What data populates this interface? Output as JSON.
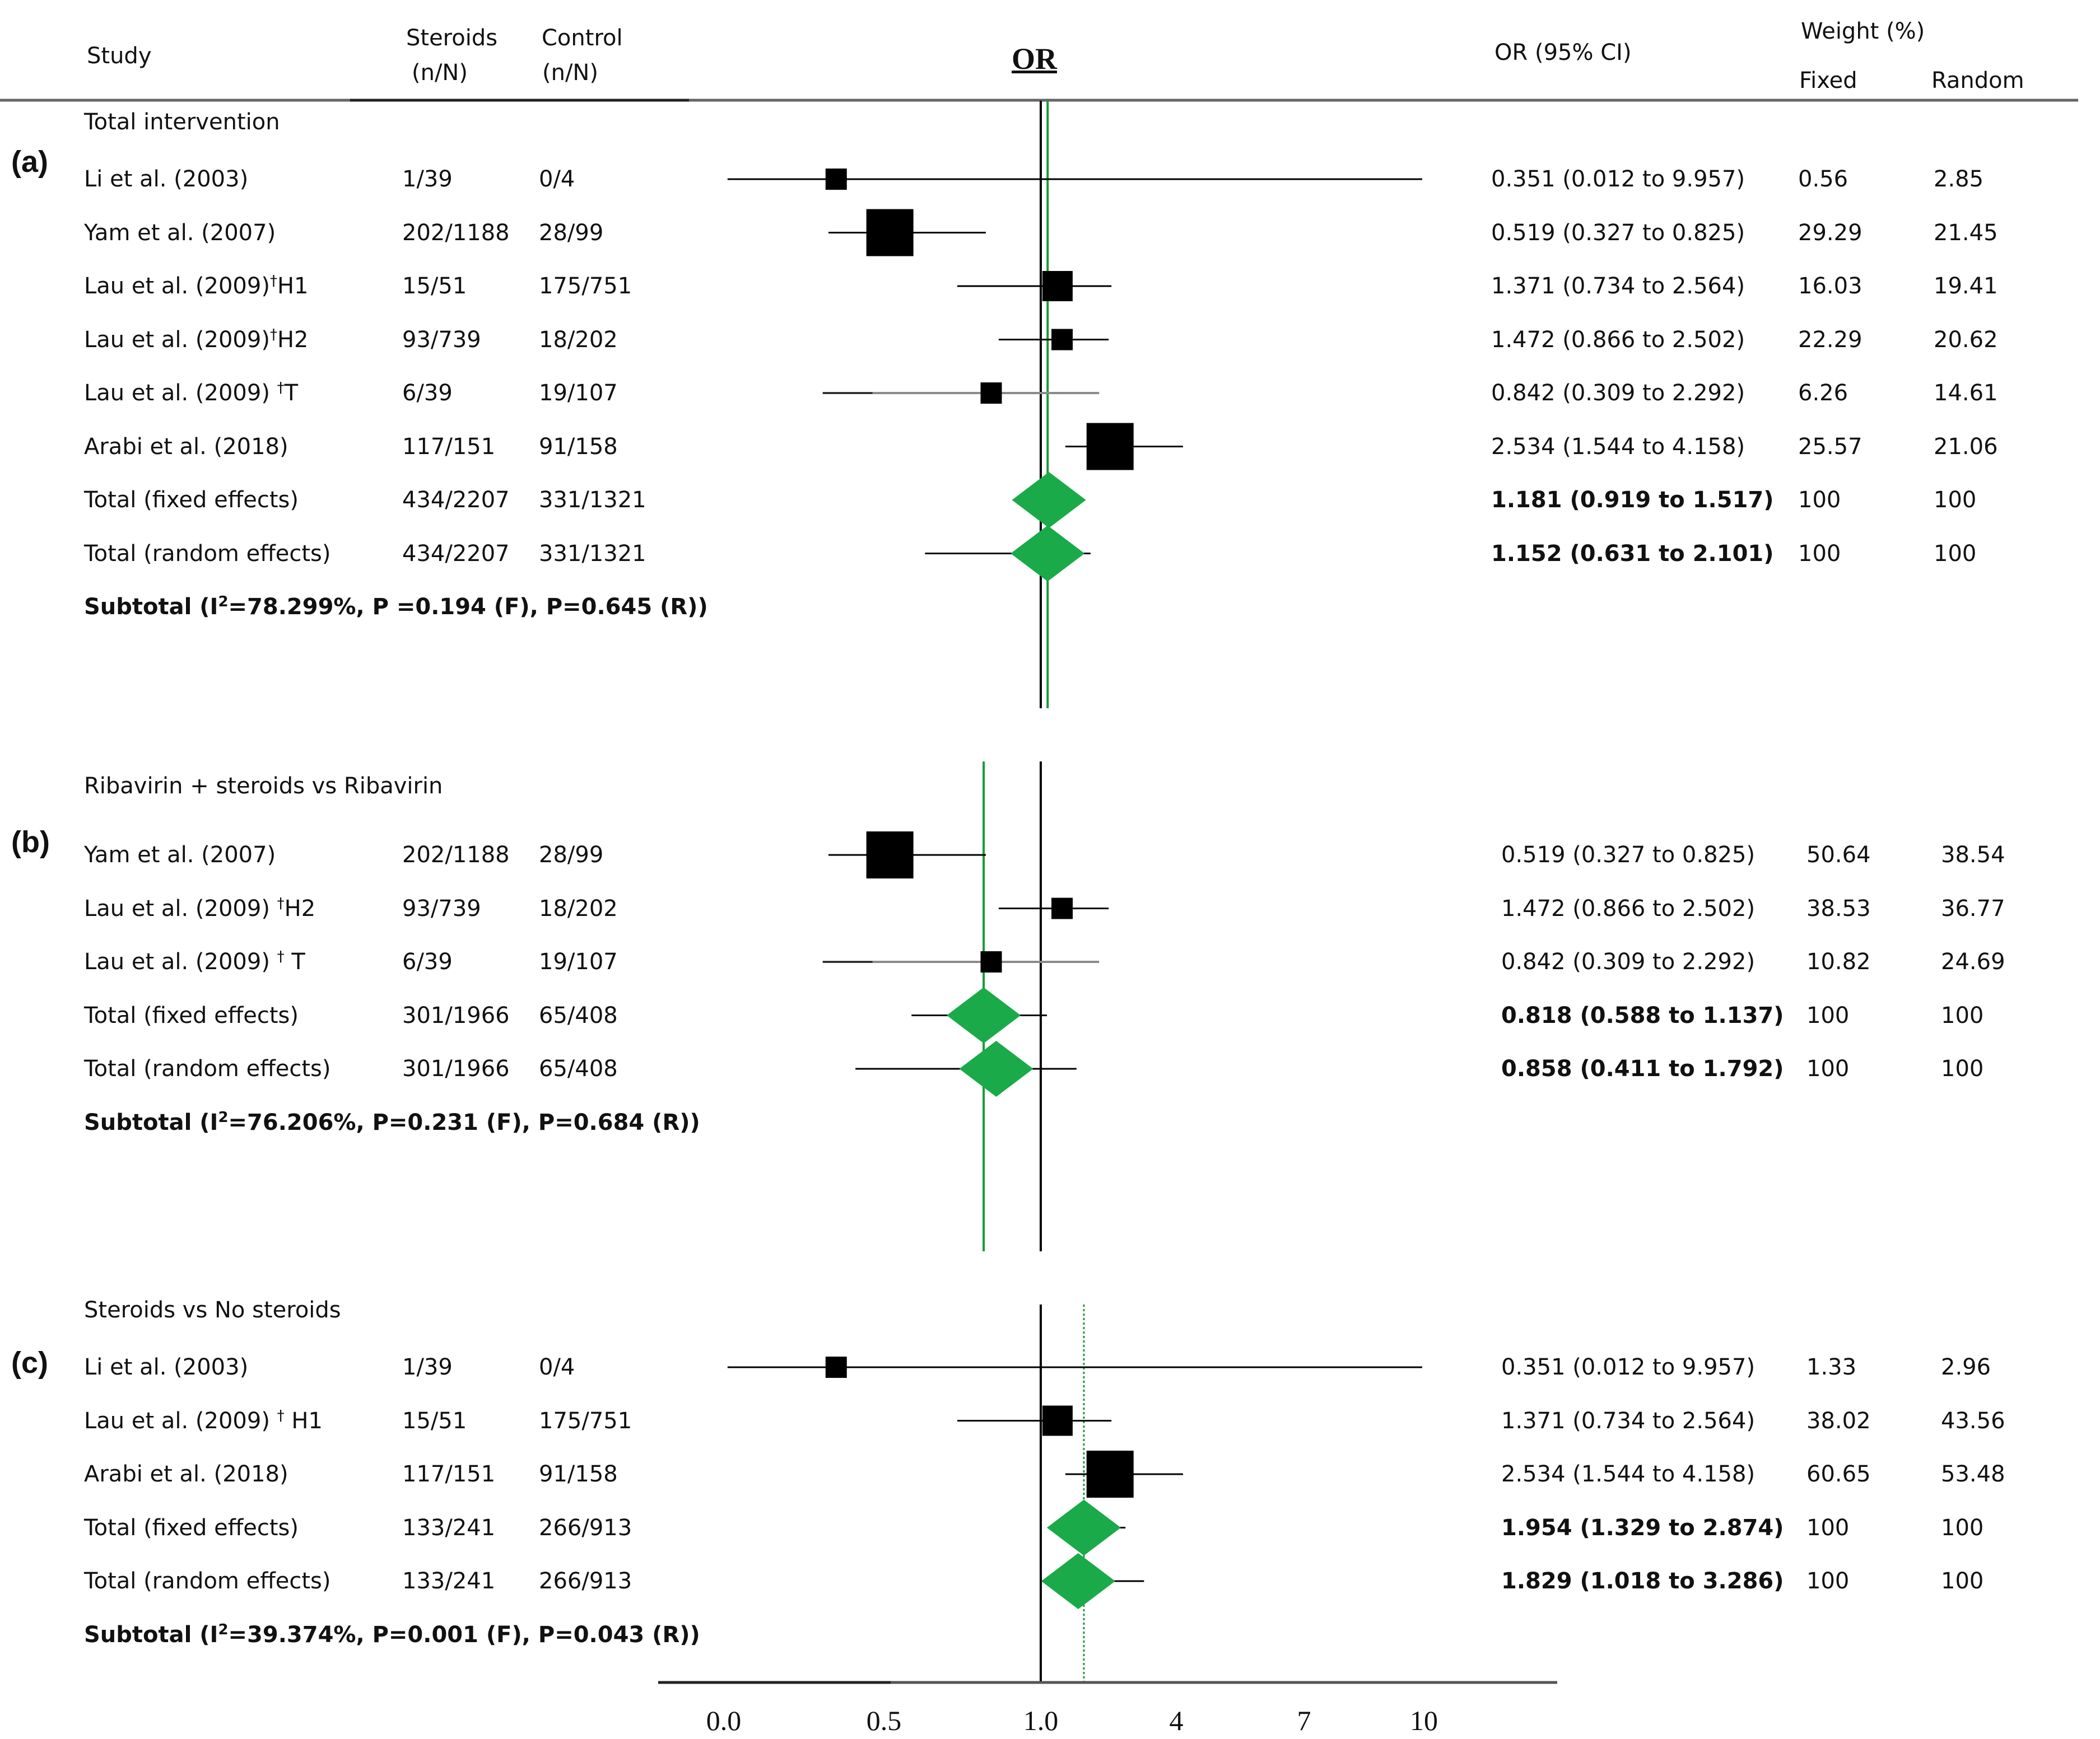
{
  "header": {
    "study": "Study",
    "steroids_line1": "Steroids",
    "steroids_line2": "(n/N)",
    "control_line1": "Control",
    "control_line2": "(n/N)",
    "or_title": "OR",
    "or_ci": "OR (95% CI)",
    "weight": "Weight (%)",
    "fixed": "Fixed",
    "random": "Random"
  },
  "colors": {
    "marker": "#000000",
    "pooled": "#1aaa4a",
    "pooled_line": "#1a9a3a",
    "gray_whisker": "#8a8a8a"
  },
  "chart_data": {
    "type": "forest",
    "x_scale": "piecewise",
    "xlabel": "OR",
    "x_ticks": [
      "0.0",
      "0.5",
      "1.0",
      "4",
      "7",
      "10"
    ],
    "x_tick_values": [
      0.0,
      0.5,
      1.0,
      4,
      7,
      10
    ],
    "reference_value": 1.0,
    "panels": [
      {
        "label": "(a)",
        "title": "Total intervention",
        "pooled_line_value": 1.152,
        "pooled_line_style": "solid",
        "rows": [
          {
            "study": "Li et al. (2003)",
            "sup": "",
            "suffix": "",
            "steroids": "1/39",
            "control": "0/4",
            "or": 0.351,
            "lo": 0.012,
            "hi": 9.957,
            "ci": "0.351 (0.012 to 9.957)",
            "w_fixed": "0.56",
            "w_random": "2.85",
            "kind": "study",
            "size": 2
          },
          {
            "study": "Yam et al. (2007)",
            "sup": "",
            "suffix": "",
            "steroids": "202/1188",
            "control": "28/99",
            "or": 0.519,
            "lo": 0.327,
            "hi": 0.825,
            "ci": "0.519 (0.327 to 0.825)",
            "w_fixed": "29.29",
            "w_random": "21.45",
            "kind": "study",
            "size": 4
          },
          {
            "study": "Lau et al. (2009)",
            "sup": "†",
            "suffix": "H1",
            "steroids": "15/51",
            "control": "175/751",
            "or": 1.371,
            "lo": 0.734,
            "hi": 2.564,
            "ci": "1.371 (0.734 to 2.564)",
            "w_fixed": "16.03",
            "w_random": "19.41",
            "kind": "study",
            "size": 3
          },
          {
            "study": "Lau et al. (2009)",
            "sup": "†",
            "suffix": "H2",
            "steroids": "93/739",
            "control": "18/202",
            "or": 1.472,
            "lo": 0.866,
            "hi": 2.502,
            "ci": "1.472 (0.866 to 2.502)",
            "w_fixed": "22.29",
            "w_random": "20.62",
            "kind": "study",
            "size": 2,
            "gray_left": false
          },
          {
            "study": "Lau et al. (2009) ",
            "sup": "†",
            "suffix": "T",
            "steroids": "6/39",
            "control": "19/107",
            "or": 0.842,
            "lo": 0.309,
            "hi": 2.292,
            "ci": "0.842 (0.309 to 2.292)",
            "w_fixed": "6.26",
            "w_random": "14.61",
            "kind": "study",
            "size": 2,
            "gray": true
          },
          {
            "study": "Arabi et al. (2018)",
            "sup": "",
            "suffix": "",
            "steroids": "117/151",
            "control": "91/158",
            "or": 2.534,
            "lo": 1.544,
            "hi": 4.158,
            "ci": "2.534 (1.544 to 4.158)",
            "w_fixed": "25.57",
            "w_random": "21.06",
            "kind": "study",
            "size": 4
          },
          {
            "study": "Total (fixed effects)",
            "sup": "",
            "suffix": "",
            "steroids": "434/2207",
            "control": "331/1321",
            "or": 1.181,
            "lo": 0.919,
            "hi": 1.517,
            "ci": "1.181 (0.919 to 1.517)",
            "w_fixed": "100",
            "w_random": "100",
            "kind": "pooled"
          },
          {
            "study": "Total (random effects)",
            "sup": "",
            "suffix": "",
            "steroids": "434/2207",
            "control": "331/1321",
            "or": 1.152,
            "lo": 0.631,
            "hi": 2.101,
            "ci": "1.152 (0.631 to 2.101)",
            "w_fixed": "100",
            "w_random": "100",
            "kind": "pooled"
          }
        ],
        "subtotal_pre": "Subtotal (I",
        "subtotal_sup": "2",
        "subtotal_post": "=78.299%, P =0.194 (F), P=0.645 (R))"
      },
      {
        "label": "(b)",
        "title": "Ribavirin + steroids vs Ribavirin",
        "pooled_line_value": 0.818,
        "pooled_line_style": "solid",
        "rows": [
          {
            "study": "Yam et al. (2007)",
            "sup": "",
            "suffix": "",
            "steroids": "202/1188",
            "control": "28/99",
            "or": 0.519,
            "lo": 0.327,
            "hi": 0.825,
            "ci": "0.519 (0.327 to 0.825)",
            "w_fixed": "50.64",
            "w_random": "38.54",
            "kind": "study",
            "size": 4
          },
          {
            "study": "Lau et al. (2009) ",
            "sup": "†",
            "suffix": "H2",
            "steroids": "93/739",
            "control": "18/202",
            "or": 1.472,
            "lo": 0.866,
            "hi": 2.502,
            "ci": "1.472 (0.866 to 2.502)",
            "w_fixed": "38.53",
            "w_random": "36.77",
            "kind": "study",
            "size": 2
          },
          {
            "study": "Lau et al. (2009) ",
            "sup": "†",
            "suffix": " T",
            "steroids": "6/39",
            "control": "19/107",
            "or": 0.842,
            "lo": 0.309,
            "hi": 2.292,
            "ci": "0.842 (0.309 to 2.292)",
            "w_fixed": "10.82",
            "w_random": "24.69",
            "kind": "study",
            "size": 2,
            "gray": true
          },
          {
            "study": "Total (fixed effects)",
            "sup": "",
            "suffix": "",
            "steroids": "301/1966",
            "control": "65/408",
            "or": 0.818,
            "lo": 0.588,
            "hi": 1.137,
            "ci": "0.818 (0.588 to 1.137)",
            "w_fixed": "100",
            "w_random": "100",
            "kind": "pooled"
          },
          {
            "study": "Total (random effects)",
            "sup": "",
            "suffix": "",
            "steroids": "301/1966",
            "control": "65/408",
            "or": 0.858,
            "lo": 0.411,
            "hi": 1.792,
            "ci": "0.858 (0.411 to 1.792)",
            "w_fixed": "100",
            "w_random": "100",
            "kind": "pooled"
          }
        ],
        "subtotal_pre": "Subtotal (I",
        "subtotal_sup": "2",
        "subtotal_post": "=76.206%, P=0.231 (F), P=0.684 (R))"
      },
      {
        "label": "(c)",
        "title": "Steroids vs No steroids",
        "pooled_line_value": 1.954,
        "pooled_line_style": "dotted",
        "rows": [
          {
            "study": "Li et al. (2003)",
            "sup": "",
            "suffix": "",
            "steroids": "1/39",
            "control": "0/4",
            "or": 0.351,
            "lo": 0.012,
            "hi": 9.957,
            "ci": "0.351 (0.012 to 9.957)",
            "w_fixed": "1.33",
            "w_random": "2.96",
            "kind": "study",
            "size": 2
          },
          {
            "study": "Lau et al. (2009) ",
            "sup": "†",
            "suffix": " H1",
            "steroids": "15/51",
            "control": "175/751",
            "or": 1.371,
            "lo": 0.734,
            "hi": 2.564,
            "ci": "1.371 (0.734 to 2.564)",
            "w_fixed": "38.02",
            "w_random": "43.56",
            "kind": "study",
            "size": 3
          },
          {
            "study": "Arabi et al. (2018)",
            "sup": "",
            "suffix": "",
            "steroids": "117/151",
            "control": "91/158",
            "or": 2.534,
            "lo": 1.544,
            "hi": 4.158,
            "ci": "2.534 (1.544 to 4.158)",
            "w_fixed": "60.65",
            "w_random": "53.48",
            "kind": "study",
            "size": 4
          },
          {
            "study": "Total (fixed effects)",
            "sup": "",
            "suffix": "",
            "steroids": "133/241",
            "control": "266/913",
            "or": 1.954,
            "lo": 1.329,
            "hi": 2.874,
            "ci": "1.954 (1.329 to 2.874)",
            "w_fixed": "100",
            "w_random": "100",
            "kind": "pooled"
          },
          {
            "study": "Total (random effects)",
            "sup": "",
            "suffix": "",
            "steroids": "133/241",
            "control": "266/913",
            "or": 1.829,
            "lo": 1.018,
            "hi": 3.286,
            "ci": "1.829 (1.018 to 3.286)",
            "w_fixed": "100",
            "w_random": "100",
            "kind": "pooled"
          }
        ],
        "subtotal_pre": "Subtotal (I",
        "subtotal_sup": "2",
        "subtotal_post": "=39.374%, P=0.001 (F), P=0.043 (R))"
      }
    ]
  }
}
